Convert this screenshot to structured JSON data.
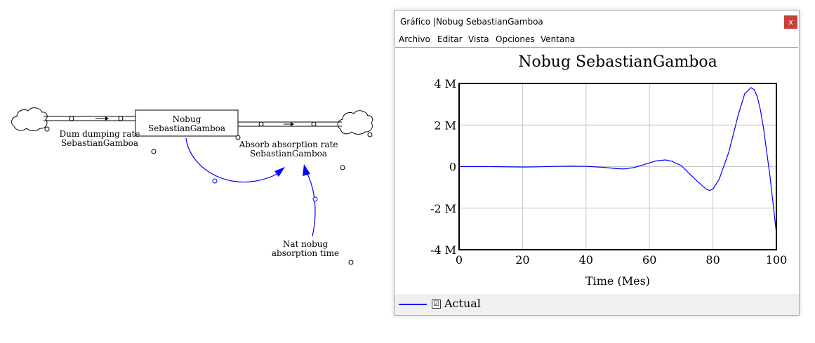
{
  "diagram": {
    "stock_label": "Nobug\nSebastianGamboa",
    "inflow_label": "Dum dumping rate\nSebastianGamboa",
    "outflow_label": "Absorb absorption rate\nSebastianGamboa",
    "aux_label": "Nat nobug\nabsorption time",
    "link_color": "#0000ff"
  },
  "window": {
    "title": "Gráfico |Nobug SebastianGamboa",
    "close_glyph": "x",
    "menu": [
      "Archivo",
      "Editar",
      "Vista",
      "Opciones",
      "Ventana"
    ],
    "legend_label": "Actual",
    "legend_check": "☑"
  },
  "chart_data": {
    "type": "line",
    "title": "Nobug SebastianGamboa",
    "xlabel": "Time (Mes)",
    "ylabel": "",
    "xlim": [
      0,
      100
    ],
    "ylim": [
      -4000000,
      4000000
    ],
    "xticks": [
      0,
      20,
      40,
      60,
      80,
      100
    ],
    "xtick_labels": [
      "0",
      "20",
      "40",
      "60",
      "80",
      "100"
    ],
    "yticks": [
      4000000,
      2000000,
      0,
      -2000000,
      -4000000
    ],
    "ytick_labels": [
      "4 M",
      "2 M",
      "0",
      "-2 M",
      "-4 M"
    ],
    "grid": true,
    "series": [
      {
        "name": "Actual",
        "color": "#0000ff",
        "x": [
          0,
          10,
          20,
          25,
          30,
          35,
          40,
          45,
          50,
          52,
          55,
          58,
          60,
          62,
          65,
          67,
          70,
          72,
          75,
          78,
          79,
          80,
          82,
          85,
          88,
          90,
          92,
          93,
          94,
          95,
          96,
          98,
          100
        ],
        "y": [
          0,
          0,
          -20000,
          -10000,
          10000,
          20000,
          10000,
          -30000,
          -100000,
          -110000,
          -50000,
          80000,
          180000,
          270000,
          320000,
          260000,
          50000,
          -250000,
          -700000,
          -1100000,
          -1150000,
          -1080000,
          -600000,
          700000,
          2500000,
          3500000,
          3800000,
          3700000,
          3350000,
          2700000,
          1800000,
          -500000,
          -3200000
        ]
      }
    ]
  }
}
